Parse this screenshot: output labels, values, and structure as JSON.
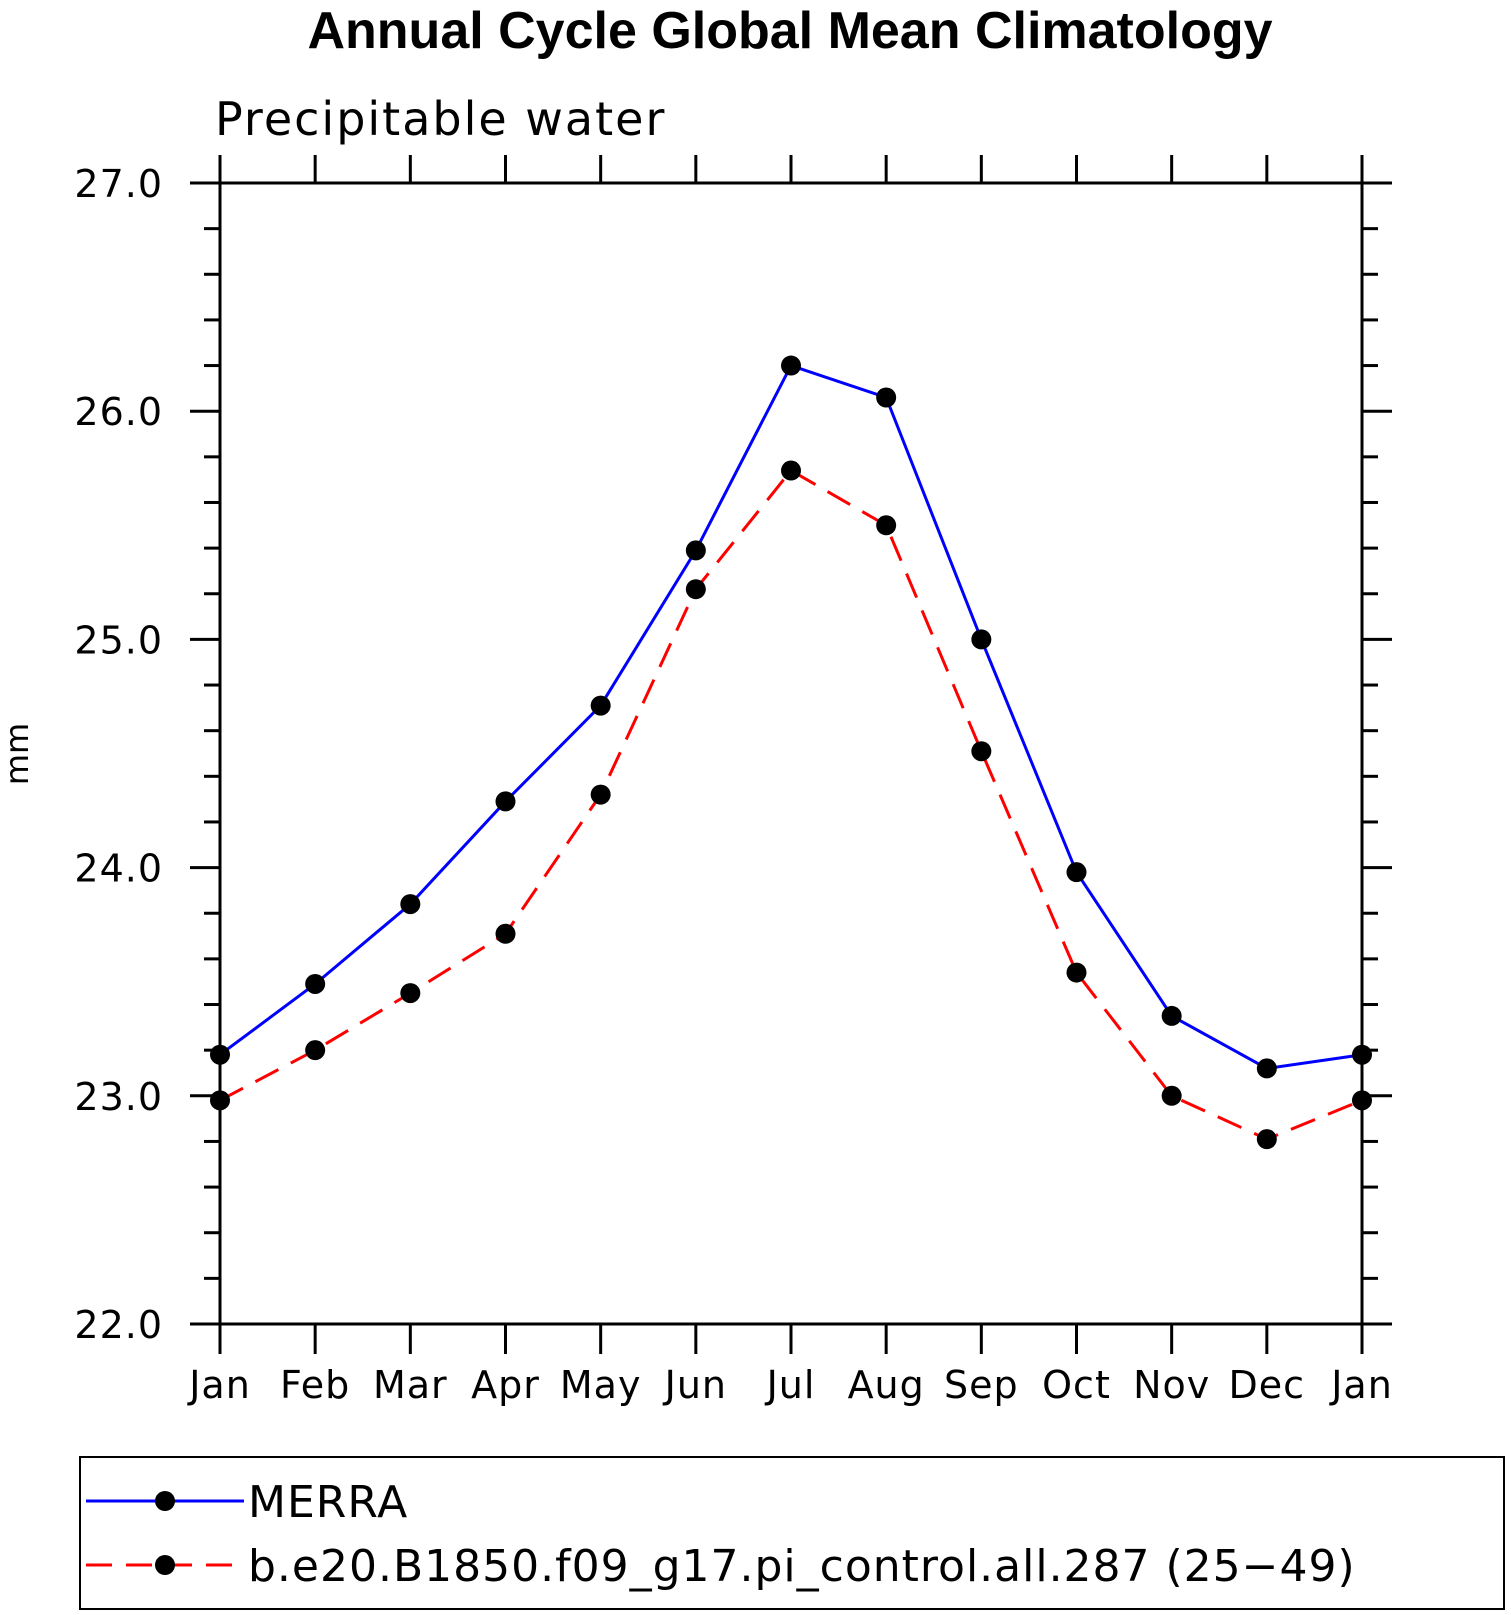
{
  "chart_data": {
    "type": "line",
    "title": "Annual Cycle Global Mean Climatology",
    "subtitle": "Precipitable water",
    "ylabel": "mm",
    "xlabel": "",
    "categories": [
      "Jan",
      "Feb",
      "Mar",
      "Apr",
      "May",
      "Jun",
      "Jul",
      "Aug",
      "Sep",
      "Oct",
      "Nov",
      "Dec",
      "Jan"
    ],
    "ylim": [
      22.0,
      27.0
    ],
    "yticks": [
      "22.0",
      "23.0",
      "24.0",
      "25.0",
      "26.0",
      "27.0"
    ],
    "grid": false,
    "legend_position": "bottom",
    "series": [
      {
        "name": "MERRA",
        "color": "#0000ff",
        "line_style": "solid",
        "marker": "filled-circle",
        "values": [
          23.18,
          23.49,
          23.84,
          24.29,
          24.71,
          25.39,
          26.2,
          26.06,
          25.0,
          23.98,
          23.35,
          23.12,
          23.18
        ]
      },
      {
        "name": "b.e20.B1850.f09_g17.pi_control.all.287 (25−49)",
        "color": "#ff0000",
        "line_style": "dashed",
        "marker": "filled-circle",
        "values": [
          22.98,
          23.2,
          23.45,
          23.71,
          24.32,
          25.22,
          25.74,
          25.5,
          24.51,
          23.54,
          23.0,
          22.81,
          22.98
        ]
      }
    ]
  }
}
